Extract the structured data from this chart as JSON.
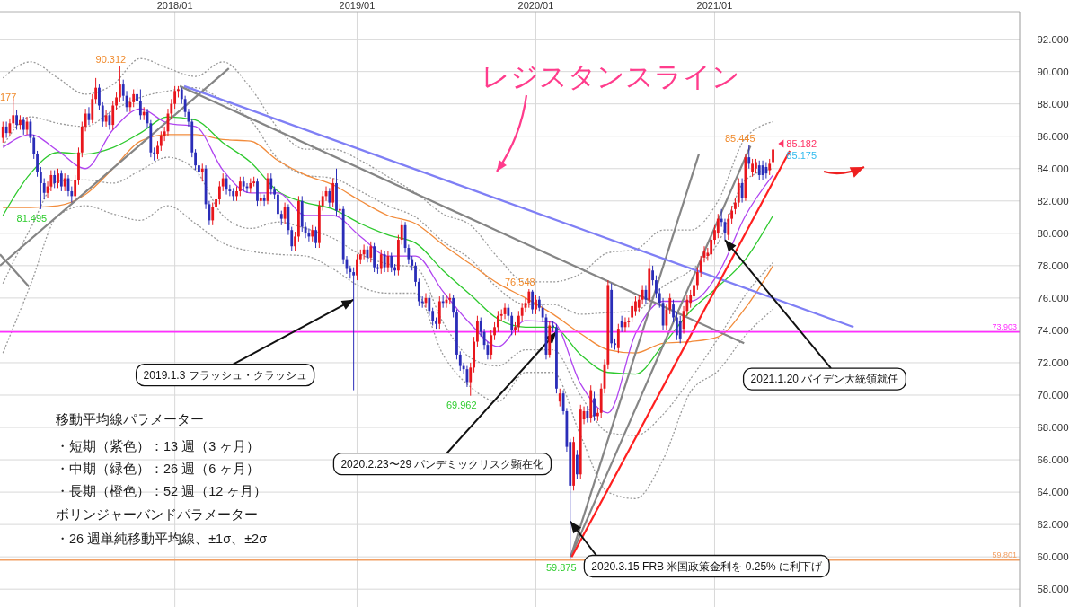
{
  "chart_data": {
    "type": "candlestick",
    "xlim": [
      "2017-01-10",
      "2022-09-17"
    ],
    "ylim": [
      56.9,
      93.7
    ],
    "xticks": [
      {
        "value": "2018-01-01",
        "label": "2018/01"
      },
      {
        "value": "2019-01-07",
        "label": "2019/01"
      },
      {
        "value": "2020-01-06",
        "label": "2020/01"
      },
      {
        "value": "2021-01-04",
        "label": "2021/01"
      }
    ],
    "yticks": [
      {
        "value": 58,
        "label": "58.000"
      },
      {
        "value": 60,
        "label": "60.000"
      },
      {
        "value": 62,
        "label": "62.000"
      },
      {
        "value": 64,
        "label": "64.000"
      },
      {
        "value": 66,
        "label": "66.000"
      },
      {
        "value": 68,
        "label": "68.000"
      },
      {
        "value": 70,
        "label": "70.000"
      },
      {
        "value": 72,
        "label": "72.000"
      },
      {
        "value": 74,
        "label": "74.000"
      },
      {
        "value": 76,
        "label": "76.000"
      },
      {
        "value": 78,
        "label": "78.000"
      },
      {
        "value": 80,
        "label": "80.000"
      },
      {
        "value": 82,
        "label": "82.000"
      },
      {
        "value": 84,
        "label": "84.000"
      },
      {
        "value": 86,
        "label": "86.000"
      },
      {
        "value": 88,
        "label": "88.000"
      },
      {
        "value": 90,
        "label": "90.000"
      },
      {
        "value": 92,
        "label": "92.000"
      }
    ],
    "grid": true,
    "colors": [
      "#e8161c",
      "#2a2db8",
      "#e8161c",
      "#e8161c",
      "#2a2db8",
      "#e8161c",
      "#2a2db8",
      "#e8161c",
      "#2a2db8",
      "#2a2db8",
      "#2a2db8",
      "#2a2db8",
      "#2a2db8",
      "#e8161c",
      "#e8161c",
      "#2a2db8",
      "#e8161c",
      "#2a2db8",
      "#e8161c",
      "#2a2db8",
      "#2a2db8",
      "#e8161c",
      "#e8161c",
      "#e8161c",
      "#e8161c",
      "#2a2db8",
      "#e8161c",
      "#e8161c",
      "#2a2db8",
      "#2a2db8",
      "#e8161c",
      "#2a2db8",
      "#e8161c",
      "#e8161c",
      "#e8161c",
      "#2a2db8",
      "#2a2db8",
      "#e8161c",
      "#e8161c",
      "#2a2db8",
      "#2a2db8",
      "#e8161c",
      "#2a2db8",
      "#2a2db8",
      "#2a2db8",
      "#e8161c",
      "#e8161c",
      "#e8161c",
      "#e8161c",
      "#e8161c",
      "#e8161c",
      "#e8161c",
      "#2a2db8",
      "#2a2db8",
      "#2a2db8",
      "#2a2db8",
      "#2a2db8",
      "#2a2db8",
      "#e8161c",
      "#2a2db8",
      "#2a2db8",
      "#e8161c",
      "#e8161c",
      "#e8161c",
      "#e8161c",
      "#2a2db8",
      "#2a2db8",
      "#2a2db8",
      "#e8161c",
      "#e8161c",
      "#2a2db8",
      "#2a2db8",
      "#e8161c",
      "#e8161c",
      "#2a2db8",
      "#e8161c",
      "#2a2db8",
      "#e8161c",
      "#2a2db8",
      "#2a2db8",
      "#2a2db8",
      "#2a2db8",
      "#e8161c",
      "#2a2db8",
      "#2a2db8",
      "#e8161c",
      "#e8161c",
      "#2a2db8",
      "#2a2db8",
      "#2a2db8",
      "#e8161c",
      "#2a2db8",
      "#e8161c",
      "#e8161c",
      "#e8161c",
      "#2a2db8",
      "#e8161c",
      "#2a2db8",
      "#e8161c",
      "#2a2db8",
      "#2a2db8",
      "#2a2db8",
      "#2a2db8",
      "#e8161c",
      "#e8161c",
      "#e8161c",
      "#2a2db8",
      "#e8161c",
      "#2a2db8",
      "#2a2db8",
      "#e8161c",
      "#2a2db8",
      "#e8161c",
      "#2a2db8",
      "#2a2db8",
      "#e8161c",
      "#e8161c",
      "#2a2db8",
      "#2a2db8",
      "#2a2db8",
      "#2a2db8",
      "#2a2db8",
      "#2a2db8",
      "#e8161c",
      "#2a2db8",
      "#2a2db8",
      "#2a2db8",
      "#e8161c",
      "#2a2db8",
      "#e8161c",
      "#e8161c",
      "#2a2db8",
      "#2a2db8",
      "#2a2db8",
      "#2a2db8",
      "#2a2db8",
      "#e8161c",
      "#e8161c",
      "#e8161c",
      "#2a2db8",
      "#2a2db8",
      "#2a2db8",
      "#e8161c",
      "#e8161c",
      "#e8161c",
      "#e8161c",
      "#e8161c",
      "#2a2db8",
      "#2a2db8",
      "#e8161c",
      "#e8161c",
      "#e8161c",
      "#e8161c",
      "#e8161c",
      "#2a2db8",
      "#e8161c",
      "#2a2db8",
      "#2a2db8",
      "#2a2db8",
      "#e8161c",
      "#2a2db8",
      "#2a2db8",
      "#e8161c",
      "#2a2db8",
      "#2a2db8",
      "#2a2db8",
      "#e8161c",
      "#2a2db8",
      "#e8161c",
      "#e8161c",
      "#2a2db8",
      "#e8161c",
      "#2a2db8",
      "#e8161c",
      "#e8161c",
      "#e8161c",
      "#e8161c",
      "#2a2db8",
      "#2a2db8",
      "#e8161c",
      "#2a2db8",
      "#e8161c",
      "#e8161c",
      "#e8161c",
      "#e8161c",
      "#e8161c",
      "#e8161c",
      "#2a2db8",
      "#e8161c",
      "#2a2db8",
      "#2a2db8",
      "#2a2db8",
      "#2a2db8",
      "#e8161c",
      "#e8161c",
      "#2a2db8",
      "#2a2db8",
      "#2a2db8",
      "#e8161c",
      "#e8161c",
      "#e8161c",
      "#e8161c",
      "#e8161c",
      "#e8161c",
      "#e8161c",
      "#e8161c",
      "#e8161c",
      "#e8161c",
      "#e8161c",
      "#2a2db8",
      "#2a2db8",
      "#e8161c",
      "#e8161c",
      "#e8161c",
      "#e8161c",
      "#2a2db8",
      "#e8161c",
      "#2a2db8",
      "#e8161c",
      "#e8161c",
      "#2a2db8",
      "#2a2db8",
      "#2a2db8",
      "#e8161c",
      "#e8161c"
    ],
    "x": [
      "2017-01-16",
      "2017-01-23",
      "2017-01-30",
      "2017-02-06",
      "2017-02-13",
      "2017-02-20",
      "2017-02-27",
      "2017-03-06",
      "2017-03-13",
      "2017-03-20",
      "2017-03-27",
      "2017-04-03",
      "2017-04-10",
      "2017-04-17",
      "2017-04-24",
      "2017-05-01",
      "2017-05-08",
      "2017-05-15",
      "2017-05-22",
      "2017-05-29",
      "2017-06-05",
      "2017-06-12",
      "2017-06-19",
      "2017-06-26",
      "2017-07-03",
      "2017-07-10",
      "2017-07-17",
      "2017-07-24",
      "2017-07-31",
      "2017-08-07",
      "2017-08-14",
      "2017-08-21",
      "2017-08-28",
      "2017-09-04",
      "2017-09-11",
      "2017-09-18",
      "2017-09-25",
      "2017-10-02",
      "2017-10-09",
      "2017-10-16",
      "2017-10-23",
      "2017-10-30",
      "2017-11-06",
      "2017-11-13",
      "2017-11-20",
      "2017-11-27",
      "2017-12-04",
      "2017-12-11",
      "2017-12-18",
      "2017-12-25",
      "2018-01-01",
      "2018-01-08",
      "2018-01-15",
      "2018-01-22",
      "2018-01-29",
      "2018-02-05",
      "2018-02-12",
      "2018-02-19",
      "2018-02-26",
      "2018-03-05",
      "2018-03-12",
      "2018-03-19",
      "2018-03-26",
      "2018-04-02",
      "2018-04-09",
      "2018-04-16",
      "2018-04-23",
      "2018-04-30",
      "2018-05-07",
      "2018-05-14",
      "2018-05-21",
      "2018-05-28",
      "2018-06-04",
      "2018-06-11",
      "2018-06-18",
      "2018-06-25",
      "2018-07-02",
      "2018-07-09",
      "2018-07-16",
      "2018-07-23",
      "2018-07-30",
      "2018-08-06",
      "2018-08-13",
      "2018-08-20",
      "2018-08-27",
      "2018-09-03",
      "2018-09-10",
      "2018-09-17",
      "2018-09-24",
      "2018-10-01",
      "2018-10-08",
      "2018-10-15",
      "2018-10-22",
      "2018-10-29",
      "2018-11-05",
      "2018-11-12",
      "2018-11-19",
      "2018-11-26",
      "2018-12-03",
      "2018-12-10",
      "2018-12-17",
      "2018-12-24",
      "2018-12-31",
      "2019-01-07",
      "2019-01-14",
      "2019-01-21",
      "2019-01-28",
      "2019-02-04",
      "2019-02-11",
      "2019-02-18",
      "2019-02-25",
      "2019-03-04",
      "2019-03-11",
      "2019-03-18",
      "2019-03-25",
      "2019-04-01",
      "2019-04-08",
      "2019-04-15",
      "2019-04-22",
      "2019-04-29",
      "2019-05-06",
      "2019-05-13",
      "2019-05-20",
      "2019-05-27",
      "2019-06-03",
      "2019-06-10",
      "2019-06-17",
      "2019-06-24",
      "2019-07-01",
      "2019-07-08",
      "2019-07-15",
      "2019-07-22",
      "2019-07-29",
      "2019-08-05",
      "2019-08-12",
      "2019-08-19",
      "2019-08-26",
      "2019-09-02",
      "2019-09-09",
      "2019-09-16",
      "2019-09-23",
      "2019-09-30",
      "2019-10-07",
      "2019-10-14",
      "2019-10-21",
      "2019-10-28",
      "2019-11-04",
      "2019-11-11",
      "2019-11-18",
      "2019-11-25",
      "2019-12-02",
      "2019-12-09",
      "2019-12-16",
      "2019-12-23",
      "2019-12-30",
      "2020-01-06",
      "2020-01-13",
      "2020-01-20",
      "2020-01-27",
      "2020-02-03",
      "2020-02-10",
      "2020-02-17",
      "2020-02-24",
      "2020-03-02",
      "2020-03-09",
      "2020-03-16",
      "2020-03-23",
      "2020-03-30",
      "2020-04-06",
      "2020-04-13",
      "2020-04-20",
      "2020-04-27",
      "2020-05-04",
      "2020-05-11",
      "2020-05-18",
      "2020-05-25",
      "2020-06-01",
      "2020-06-08",
      "2020-06-15",
      "2020-06-22",
      "2020-06-29",
      "2020-07-06",
      "2020-07-13",
      "2020-07-20",
      "2020-07-27",
      "2020-08-03",
      "2020-08-10",
      "2020-08-17",
      "2020-08-24",
      "2020-08-31",
      "2020-09-07",
      "2020-09-14",
      "2020-09-21",
      "2020-09-28",
      "2020-10-05",
      "2020-10-12",
      "2020-10-19",
      "2020-10-26",
      "2020-11-02",
      "2020-11-09",
      "2020-11-16",
      "2020-11-23",
      "2020-11-30",
      "2020-12-07",
      "2020-12-14",
      "2020-12-21",
      "2020-12-28",
      "2021-01-04",
      "2021-01-11",
      "2021-01-18",
      "2021-01-25",
      "2021-02-01",
      "2021-02-08",
      "2021-02-15",
      "2021-02-22",
      "2021-03-01",
      "2021-03-08",
      "2021-03-15",
      "2021-03-22",
      "2021-03-29",
      "2021-04-05",
      "2021-04-12",
      "2021-04-19",
      "2021-04-26",
      "2021-05-03"
    ],
    "ohlc": [
      [
        85.9,
        86.9,
        85.6,
        86.6
      ],
      [
        86.6,
        86.9,
        85.9,
        86.2
      ],
      [
        86.2,
        87.1,
        86.0,
        86.8
      ],
      [
        86.8,
        88.3,
        86.5,
        87.3
      ],
      [
        87.3,
        87.6,
        86.4,
        86.7
      ],
      [
        86.7,
        87.3,
        86.4,
        87.0
      ],
      [
        87.0,
        87.2,
        86.1,
        86.4
      ],
      [
        86.4,
        87.2,
        86.1,
        86.9
      ],
      [
        86.9,
        87.1,
        85.6,
        85.9
      ],
      [
        85.9,
        86.1,
        84.6,
        84.9
      ],
      [
        84.9,
        85.1,
        83.5,
        83.8
      ],
      [
        83.8,
        84.1,
        81.495,
        83.1
      ],
      [
        83.1,
        83.4,
        82.1,
        82.5
      ],
      [
        82.5,
        83.2,
        82.2,
        82.9
      ],
      [
        82.9,
        83.9,
        82.6,
        83.6
      ],
      [
        83.6,
        83.9,
        82.8,
        83.1
      ],
      [
        83.1,
        84.0,
        82.8,
        83.7
      ],
      [
        83.7,
        83.9,
        82.6,
        82.9
      ],
      [
        82.9,
        83.7,
        82.6,
        83.4
      ],
      [
        83.4,
        83.6,
        82.3,
        82.6
      ],
      [
        82.6,
        82.9,
        81.9,
        82.3
      ],
      [
        82.3,
        83.6,
        82.0,
        83.3
      ],
      [
        83.3,
        85.3,
        83.0,
        85.0
      ],
      [
        85.0,
        86.9,
        84.7,
        86.6
      ],
      [
        86.6,
        87.7,
        86.3,
        87.4
      ],
      [
        87.4,
        87.8,
        86.7,
        87.0
      ],
      [
        87.0,
        88.6,
        86.8,
        88.3
      ],
      [
        88.3,
        89.6,
        88.0,
        89.0
      ],
      [
        89.0,
        89.2,
        87.6,
        87.9
      ],
      [
        87.9,
        88.1,
        86.6,
        86.9
      ],
      [
        86.9,
        87.6,
        86.6,
        87.3
      ],
      [
        87.3,
        87.5,
        86.4,
        86.7
      ],
      [
        86.7,
        88.2,
        86.4,
        87.9
      ],
      [
        87.9,
        88.7,
        87.6,
        88.4
      ],
      [
        88.4,
        90.312,
        88.1,
        89.2
      ],
      [
        89.2,
        89.5,
        88.2,
        88.5
      ],
      [
        88.5,
        88.8,
        87.5,
        87.8
      ],
      [
        87.8,
        88.4,
        87.5,
        88.1
      ],
      [
        88.1,
        88.9,
        87.8,
        88.6
      ],
      [
        88.6,
        89.0,
        87.9,
        88.2
      ],
      [
        88.2,
        88.9,
        87.0,
        87.3
      ],
      [
        87.3,
        87.8,
        87.0,
        87.5
      ],
      [
        87.5,
        87.7,
        86.5,
        86.8
      ],
      [
        86.8,
        87.0,
        84.7,
        85.0
      ],
      [
        85.0,
        85.3,
        84.5,
        84.9
      ],
      [
        84.9,
        85.7,
        84.6,
        85.4
      ],
      [
        85.4,
        86.3,
        85.1,
        86.0
      ],
      [
        86.0,
        86.6,
        85.7,
        86.3
      ],
      [
        86.3,
        87.7,
        86.0,
        87.4
      ],
      [
        87.4,
        88.3,
        87.1,
        88.0
      ],
      [
        88.0,
        89.1,
        87.7,
        88.8
      ],
      [
        88.8,
        89.1,
        88.4,
        88.9
      ],
      [
        88.9,
        89.0,
        88.0,
        88.3
      ],
      [
        88.3,
        88.5,
        87.2,
        87.5
      ],
      [
        87.5,
        87.7,
        86.6,
        86.9
      ],
      [
        86.9,
        87.1,
        84.7,
        85.0
      ],
      [
        85.0,
        85.2,
        83.9,
        84.2
      ],
      [
        84.2,
        84.4,
        83.5,
        83.8
      ],
      [
        83.8,
        84.3,
        83.2,
        84.0
      ],
      [
        84.0,
        84.2,
        81.5,
        81.8
      ],
      [
        81.8,
        82.0,
        80.5,
        80.8
      ],
      [
        80.8,
        81.9,
        80.5,
        81.6
      ],
      [
        81.6,
        82.4,
        81.3,
        82.1
      ],
      [
        82.1,
        83.2,
        81.8,
        82.9
      ],
      [
        82.9,
        83.7,
        82.6,
        83.4
      ],
      [
        83.4,
        83.6,
        82.4,
        82.7
      ],
      [
        82.7,
        83.0,
        82.3,
        82.6
      ],
      [
        82.6,
        82.8,
        82.0,
        82.3
      ],
      [
        82.3,
        82.9,
        82.0,
        82.6
      ],
      [
        82.6,
        83.5,
        82.3,
        83.2
      ],
      [
        83.2,
        83.5,
        82.6,
        82.9
      ],
      [
        82.9,
        83.1,
        82.5,
        82.8
      ],
      [
        82.8,
        83.4,
        82.5,
        83.1
      ],
      [
        83.1,
        83.5,
        82.9,
        83.2
      ],
      [
        83.2,
        83.4,
        81.7,
        82.0
      ],
      [
        82.0,
        82.5,
        81.7,
        82.2
      ],
      [
        82.2,
        82.4,
        81.7,
        82.0
      ],
      [
        82.0,
        83.7,
        81.8,
        83.4
      ],
      [
        83.4,
        83.7,
        82.4,
        82.7
      ],
      [
        82.7,
        82.9,
        82.1,
        82.4
      ],
      [
        82.4,
        82.6,
        80.9,
        81.2
      ],
      [
        81.2,
        81.4,
        80.5,
        80.9
      ],
      [
        80.9,
        81.9,
        80.6,
        81.6
      ],
      [
        81.6,
        81.8,
        79.9,
        80.2
      ],
      [
        80.2,
        80.4,
        78.9,
        79.2
      ],
      [
        79.2,
        80.1,
        78.9,
        79.8
      ],
      [
        79.8,
        82.3,
        79.5,
        82.0
      ],
      [
        82.0,
        82.3,
        80.1,
        80.4
      ],
      [
        80.4,
        80.7,
        79.7,
        80.0
      ],
      [
        80.0,
        80.3,
        79.5,
        79.8
      ],
      [
        79.8,
        80.5,
        79.5,
        80.2
      ],
      [
        80.2,
        80.4,
        79.1,
        79.4
      ],
      [
        79.4,
        82.0,
        79.1,
        81.7
      ],
      [
        81.7,
        82.6,
        81.4,
        82.3
      ],
      [
        82.3,
        82.9,
        82.0,
        82.6
      ],
      [
        82.6,
        82.8,
        81.6,
        81.9
      ],
      [
        81.9,
        83.4,
        81.6,
        83.1
      ],
      [
        83.1,
        84.0,
        81.1,
        81.4
      ],
      [
        81.4,
        81.8,
        81.1,
        81.5
      ],
      [
        81.5,
        81.7,
        78.1,
        78.4
      ],
      [
        78.4,
        78.6,
        77.5,
        77.8
      ],
      [
        77.8,
        78.0,
        77.2,
        77.6
      ],
      [
        77.6,
        77.9,
        70.3,
        77.4
      ],
      [
        77.4,
        78.7,
        77.1,
        78.4
      ],
      [
        78.4,
        79.0,
        78.1,
        78.7
      ],
      [
        78.7,
        79.3,
        78.4,
        79.0
      ],
      [
        79.0,
        79.2,
        78.2,
        78.5
      ],
      [
        78.5,
        79.5,
        78.2,
        79.2
      ],
      [
        79.2,
        79.4,
        77.6,
        77.9
      ],
      [
        77.9,
        78.1,
        77.5,
        77.8
      ],
      [
        77.8,
        79.0,
        77.5,
        78.7
      ],
      [
        78.7,
        78.9,
        77.6,
        77.9
      ],
      [
        77.9,
        78.9,
        77.6,
        78.6
      ],
      [
        78.6,
        78.8,
        77.6,
        77.9
      ],
      [
        77.9,
        78.1,
        77.4,
        77.7
      ],
      [
        77.7,
        79.9,
        77.4,
        79.6
      ],
      [
        79.6,
        80.8,
        79.3,
        80.5
      ],
      [
        80.5,
        80.7,
        78.8,
        79.1
      ],
      [
        79.1,
        79.3,
        78.1,
        78.4
      ],
      [
        78.4,
        78.6,
        77.7,
        78.0
      ],
      [
        78.0,
        78.2,
        76.7,
        77.0
      ],
      [
        77.0,
        77.2,
        75.5,
        75.8
      ],
      [
        75.8,
        76.1,
        75.4,
        75.7
      ],
      [
        75.7,
        76.3,
        75.4,
        76.0
      ],
      [
        76.0,
        76.2,
        74.9,
        75.2
      ],
      [
        75.2,
        75.4,
        74.3,
        74.6
      ],
      [
        74.6,
        74.8,
        74.1,
        74.4
      ],
      [
        74.4,
        76.1,
        74.1,
        75.8
      ],
      [
        75.8,
        76.2,
        75.4,
        75.7
      ],
      [
        75.7,
        76.2,
        75.4,
        75.9
      ],
      [
        75.9,
        76.3,
        75.6,
        76.0
      ],
      [
        76.0,
        76.2,
        74.8,
        75.1
      ],
      [
        75.1,
        75.3,
        72.2,
        72.5
      ],
      [
        72.5,
        72.7,
        71.5,
        71.8
      ],
      [
        71.8,
        72.0,
        71.3,
        71.6
      ],
      [
        71.6,
        71.8,
        70.5,
        70.8
      ],
      [
        70.8,
        72.0,
        69.962,
        71.7
      ],
      [
        71.7,
        73.6,
        71.4,
        73.3
      ],
      [
        73.3,
        74.9,
        73.0,
        74.6
      ],
      [
        74.6,
        74.8,
        73.6,
        73.9
      ],
      [
        73.9,
        74.1,
        72.8,
        73.1
      ],
      [
        73.1,
        73.3,
        72.2,
        72.5
      ],
      [
        72.5,
        74.0,
        72.2,
        73.7
      ],
      [
        73.7,
        74.5,
        73.4,
        74.2
      ],
      [
        74.2,
        75.2,
        73.9,
        74.9
      ],
      [
        74.9,
        75.3,
        74.6,
        75.0
      ],
      [
        75.0,
        75.7,
        74.7,
        75.4
      ],
      [
        75.4,
        75.6,
        74.6,
        74.9
      ],
      [
        74.9,
        75.1,
        73.7,
        74.0
      ],
      [
        74.0,
        74.5,
        73.7,
        74.2
      ],
      [
        74.2,
        75.2,
        73.9,
        74.9
      ],
      [
        74.9,
        75.7,
        74.6,
        75.4
      ],
      [
        75.4,
        76.0,
        75.1,
        75.7
      ],
      [
        75.7,
        76.548,
        75.4,
        76.4
      ],
      [
        76.4,
        76.5,
        75.0,
        75.3
      ],
      [
        75.3,
        76.2,
        75.0,
        75.9
      ],
      [
        75.9,
        76.1,
        75.2,
        75.4
      ],
      [
        75.4,
        75.6,
        74.5,
        74.8
      ],
      [
        74.8,
        75.0,
        72.2,
        72.5
      ],
      [
        72.5,
        74.6,
        72.3,
        74.3
      ],
      [
        74.3,
        74.6,
        73.9,
        74.2
      ],
      [
        74.2,
        74.4,
        70.1,
        70.4
      ],
      [
        69.6,
        70.4,
        69.3,
        70.1
      ],
      [
        70.1,
        70.3,
        68.8,
        69.0
      ],
      [
        69.0,
        69.2,
        66.5,
        66.8
      ],
      [
        67.1,
        67.3,
        59.875,
        64.4
      ],
      [
        64.4,
        67.4,
        64.1,
        67.1
      ],
      [
        66.3,
        66.6,
        64.8,
        65.1
      ],
      [
        65.1,
        69.4,
        64.8,
        69.1
      ],
      [
        68.5,
        69.3,
        68.2,
        69.0
      ],
      [
        69.0,
        69.3,
        68.3,
        68.6
      ],
      [
        68.6,
        70.6,
        68.3,
        70.3
      ],
      [
        69.8,
        70.2,
        68.4,
        68.7
      ],
      [
        68.7,
        69.2,
        68.4,
        68.9
      ],
      [
        68.9,
        70.7,
        68.6,
        70.4
      ],
      [
        70.4,
        72.2,
        70.1,
        71.9
      ],
      [
        71.9,
        77.1,
        71.6,
        76.8
      ],
      [
        76.5,
        76.9,
        72.9,
        73.2
      ],
      [
        73.2,
        73.5,
        72.8,
        73.1
      ],
      [
        72.9,
        74.4,
        72.6,
        74.1
      ],
      [
        74.6,
        74.9,
        73.9,
        74.2
      ],
      [
        74.2,
        74.8,
        73.9,
        74.5
      ],
      [
        74.5,
        74.8,
        74.2,
        74.6
      ],
      [
        74.8,
        75.8,
        74.5,
        75.5
      ],
      [
        75.2,
        76.1,
        74.9,
        75.8
      ],
      [
        75.4,
        76.2,
        75.1,
        75.9
      ],
      [
        75.9,
        76.8,
        75.6,
        76.5
      ],
      [
        76.5,
        76.8,
        75.6,
        75.9
      ],
      [
        75.9,
        78.4,
        75.6,
        77.8
      ],
      [
        77.7,
        78.0,
        76.8,
        77.1
      ],
      [
        77.1,
        77.4,
        76.0,
        76.3
      ],
      [
        76.3,
        76.6,
        75.4,
        75.7
      ],
      [
        75.7,
        76.0,
        74.0,
        74.3
      ],
      [
        74.3,
        75.6,
        74.0,
        75.3
      ],
      [
        75.3,
        76.3,
        75.0,
        76.0
      ],
      [
        75.6,
        75.9,
        74.5,
        74.8
      ],
      [
        74.8,
        75.1,
        73.4,
        73.7
      ],
      [
        74.6,
        74.9,
        73.2,
        73.5
      ],
      [
        74.1,
        75.5,
        73.8,
        75.2
      ],
      [
        75.2,
        76.2,
        74.9,
        75.9
      ],
      [
        75.7,
        76.5,
        75.4,
        76.2
      ],
      [
        76.1,
        77.1,
        75.8,
        76.8
      ],
      [
        76.8,
        77.9,
        76.5,
        77.6
      ],
      [
        77.6,
        78.6,
        77.3,
        78.3
      ],
      [
        78.5,
        79.2,
        78.2,
        78.9
      ],
      [
        78.6,
        79.1,
        78.3,
        78.8
      ],
      [
        78.7,
        79.9,
        78.4,
        79.6
      ],
      [
        79.6,
        80.5,
        79.3,
        80.2
      ],
      [
        80.0,
        81.2,
        79.7,
        80.9
      ],
      [
        80.9,
        81.5,
        80.4,
        80.7
      ],
      [
        80.7,
        80.9,
        79.6,
        80.0
      ],
      [
        79.9,
        81.2,
        79.6,
        80.9
      ],
      [
        80.9,
        81.7,
        80.6,
        81.4
      ],
      [
        81.5,
        82.2,
        81.2,
        81.9
      ],
      [
        81.9,
        83.4,
        81.6,
        83.1
      ],
      [
        83.1,
        83.4,
        81.9,
        82.2
      ],
      [
        82.2,
        84.9,
        82.0,
        84.7
      ],
      [
        84.7,
        85.445,
        84.0,
        84.3
      ],
      [
        83.8,
        84.6,
        83.5,
        84.3
      ],
      [
        84.0,
        84.6,
        83.7,
        84.4
      ],
      [
        84.2,
        84.5,
        83.3,
        83.6
      ],
      [
        84.2,
        84.5,
        83.3,
        83.6
      ],
      [
        84.1,
        84.4,
        83.4,
        83.7
      ],
      [
        83.9,
        84.6,
        83.6,
        84.3
      ],
      [
        84.4,
        85.3,
        84.1,
        85.182
      ]
    ],
    "series": [
      {
        "type": "line",
        "line_style": "dotted",
        "color": "#9a9a9a",
        "x": [
          "2017-01-16",
          "2017-03-13",
          "2017-05-08",
          "2017-07-03",
          "2017-08-28",
          "2017-10-23",
          "2017-12-18",
          "2018-02-12",
          "2018-04-09",
          "2018-06-04",
          "2018-07-30",
          "2018-09-24",
          "2018-11-19",
          "2019-01-14",
          "2019-03-11",
          "2019-05-06",
          "2019-07-01",
          "2019-08-26",
          "2019-10-21",
          "2019-12-16",
          "2020-02-10",
          "2020-04-06",
          "2020-06-01",
          "2020-07-27",
          "2020-09-21",
          "2020-11-16",
          "2021-01-11",
          "2021-03-08",
          "2021-05-03"
        ],
        "values": [
          89.6,
          90.6,
          89.6,
          88.6,
          89.2,
          90.8,
          90.2,
          89.7,
          90.6,
          89.0,
          86.5,
          85.2,
          85.2,
          84.5,
          83.5,
          82.5,
          81.2,
          80.5,
          78.5,
          77.0,
          77.0,
          77.5,
          78.8,
          79.0,
          80.2,
          80.2,
          82.0,
          85.9,
          86.9
        ]
      },
      {
        "type": "line",
        "line_style": "dotted",
        "color": "#9a9a9a",
        "x": [
          "2017-01-16",
          "2017-03-13",
          "2017-05-08",
          "2017-07-03",
          "2017-08-28",
          "2017-10-23",
          "2017-12-18",
          "2018-02-12",
          "2018-04-09",
          "2018-06-04",
          "2018-07-30",
          "2018-09-24",
          "2018-11-19",
          "2019-01-14",
          "2019-03-11",
          "2019-05-06",
          "2019-07-01",
          "2019-08-26",
          "2019-10-21",
          "2019-12-16",
          "2020-02-10",
          "2020-04-06",
          "2020-06-01",
          "2020-07-27",
          "2020-09-21",
          "2020-11-16",
          "2021-01-11",
          "2021-03-08",
          "2021-05-03"
        ],
        "values": [
          85.4,
          87.2,
          86.8,
          86.6,
          87.6,
          88.4,
          88.8,
          89.0,
          88.2,
          87.0,
          84.6,
          83.6,
          83.4,
          82.6,
          81.7,
          81.0,
          79.5,
          78.4,
          76.6,
          75.6,
          75.6,
          75.0,
          75.1,
          75.2,
          76.7,
          77.7,
          79.4,
          83.3,
          84.0
        ]
      },
      {
        "type": "line",
        "line_style": "dotted",
        "color": "#9a9a9a",
        "x": [
          "2017-01-16",
          "2017-03-13",
          "2017-05-08",
          "2017-07-03",
          "2017-08-28",
          "2017-10-23",
          "2017-12-18",
          "2018-02-12",
          "2018-04-09",
          "2018-06-04",
          "2018-07-30",
          "2018-09-24",
          "2018-11-19",
          "2019-01-14",
          "2019-03-11",
          "2019-05-06",
          "2019-07-01",
          "2019-08-26",
          "2019-10-21",
          "2019-12-16",
          "2020-02-10",
          "2020-04-06",
          "2020-06-01",
          "2020-07-27",
          "2020-09-21",
          "2020-11-16",
          "2021-01-11",
          "2021-03-08",
          "2021-05-03"
        ],
        "values": [
          76.9,
          80.3,
          83.2,
          83.3,
          83.1,
          83.9,
          84.7,
          83.9,
          81.1,
          80.3,
          80.7,
          80.3,
          79.7,
          78.7,
          78.1,
          77.9,
          74.5,
          72.3,
          71.8,
          72.8,
          72.8,
          70.0,
          67.7,
          67.5,
          68.8,
          71.0,
          73.5,
          76.2,
          78.2
        ]
      },
      {
        "type": "line",
        "line_style": "dotted",
        "color": "#9a9a9a",
        "x": [
          "2017-01-16",
          "2017-03-13",
          "2017-05-08",
          "2017-07-03",
          "2017-08-28",
          "2017-10-23",
          "2017-12-18",
          "2018-02-12",
          "2018-04-09",
          "2018-06-04",
          "2018-07-30",
          "2018-09-24",
          "2018-11-19",
          "2019-01-14",
          "2019-03-11",
          "2019-05-06",
          "2019-07-01",
          "2019-08-26",
          "2019-10-21",
          "2019-12-16",
          "2020-02-10",
          "2020-04-06",
          "2020-06-01",
          "2020-07-27",
          "2020-09-21",
          "2020-11-16",
          "2021-01-11",
          "2021-03-08",
          "2021-05-03"
        ],
        "values": [
          72.6,
          76.8,
          81.1,
          81.7,
          81.2,
          80.8,
          81.7,
          80.6,
          79.4,
          78.9,
          78.7,
          78.6,
          77.8,
          76.7,
          76.3,
          76.3,
          72.5,
          70.5,
          69.6,
          71.4,
          71.4,
          67.5,
          64.0,
          63.6,
          66.0,
          70.2,
          71.5,
          73.7,
          75.3
        ]
      },
      {
        "type": "line",
        "color": "#f28c3c",
        "x": [
          "2017-01-16",
          "2017-03-13",
          "2017-05-08",
          "2017-07-03",
          "2017-08-28",
          "2017-10-23",
          "2017-12-18",
          "2018-02-12",
          "2018-04-09",
          "2018-06-04",
          "2018-07-30",
          "2018-09-24",
          "2018-11-19",
          "2019-01-14",
          "2019-03-11",
          "2019-05-06",
          "2019-07-01",
          "2019-08-26",
          "2019-10-21",
          "2019-12-16",
          "2020-02-10",
          "2020-04-06",
          "2020-06-01",
          "2020-07-27",
          "2020-09-21",
          "2020-11-16",
          "2021-01-11",
          "2021-03-08",
          "2021-05-03"
        ],
        "values": [
          81.6,
          81.6,
          81.7,
          82.4,
          84.0,
          85.7,
          86.1,
          86.1,
          85.8,
          85.7,
          84.5,
          83.6,
          83.0,
          82.0,
          81.1,
          80.6,
          79.3,
          78.1,
          76.9,
          76.0,
          75.0,
          73.8,
          72.8,
          72.6,
          73.2,
          73.3,
          73.6,
          75.4,
          78.0
        ]
      },
      {
        "type": "line",
        "color": "#2ec92e",
        "x": [
          "2017-01-16",
          "2017-03-13",
          "2017-05-08",
          "2017-07-03",
          "2017-08-28",
          "2017-10-23",
          "2017-12-18",
          "2018-02-12",
          "2018-04-09",
          "2018-06-04",
          "2018-07-30",
          "2018-09-24",
          "2018-11-19",
          "2019-01-14",
          "2019-03-11",
          "2019-05-06",
          "2019-07-01",
          "2019-08-26",
          "2019-10-21",
          "2019-12-16",
          "2020-02-10",
          "2020-04-06",
          "2020-06-01",
          "2020-07-27",
          "2020-09-21",
          "2020-11-16",
          "2021-01-11",
          "2021-03-08",
          "2021-05-03"
        ],
        "values": [
          81.1,
          83.7,
          85.0,
          84.9,
          85.3,
          86.2,
          87.2,
          87.0,
          85.6,
          84.4,
          82.6,
          81.9,
          81.5,
          80.6,
          79.9,
          79.4,
          77.7,
          76.2,
          74.7,
          74.2,
          74.2,
          72.5,
          71.4,
          71.3,
          73.1,
          75.2,
          76.7,
          78.4,
          81.1
        ]
      },
      {
        "type": "line",
        "color": "#b045f0",
        "x": [
          "2017-01-16",
          "2017-03-13",
          "2017-05-08",
          "2017-07-03",
          "2017-08-28",
          "2017-10-23",
          "2017-12-18",
          "2018-02-12",
          "2018-04-09",
          "2018-06-04",
          "2018-07-30",
          "2018-09-24",
          "2018-11-19",
          "2019-01-14",
          "2019-03-11",
          "2019-05-06",
          "2019-07-01",
          "2019-08-26",
          "2019-10-21",
          "2019-12-16",
          "2020-02-10",
          "2020-04-06",
          "2020-06-01",
          "2020-07-27",
          "2020-09-21",
          "2020-11-16",
          "2021-01-11",
          "2021-03-08",
          "2021-05-03"
        ],
        "values": [
          85.3,
          86.1,
          85.1,
          84.0,
          86.4,
          87.7,
          86.8,
          86.6,
          83.9,
          82.5,
          82.5,
          81.1,
          81.1,
          79.8,
          78.6,
          78.6,
          76.4,
          74.4,
          73.0,
          74.6,
          74.5,
          70.7,
          68.9,
          73.8,
          75.8,
          75.8,
          77.5,
          81.1,
          83.6
        ]
      },
      {
        "type": "line",
        "color": "#858585",
        "x": [
          "2017-01-10",
          "2018-04-21"
        ],
        "values": [
          78.0,
          90.2
        ]
      },
      {
        "type": "line",
        "color": "#858585",
        "x": [
          "2017-01-10",
          "2017-03-10"
        ],
        "values": [
          78.7,
          76.7
        ]
      },
      {
        "type": "line",
        "color": "#858585",
        "x": [
          "2018-01-11",
          "2021-03-05"
        ],
        "values": [
          89.1,
          73.2
        ]
      },
      {
        "type": "line",
        "color": "#858585",
        "x": [
          "2020-03-17",
          "2020-12-03"
        ],
        "values": [
          60.0,
          84.9
        ]
      },
      {
        "type": "line",
        "color": "#858585",
        "x": [
          "2020-03-17",
          "2021-03-18"
        ],
        "values": [
          60.0,
          85.4
        ]
      },
      {
        "type": "line",
        "color": "#7f7ff5",
        "x": [
          "2018-01-20",
          "2021-10-14"
        ],
        "values": [
          89.1,
          74.2
        ]
      },
      {
        "type": "line",
        "color": "#ff1f1f",
        "x": [
          "2020-03-19",
          "2021-06-06"
        ],
        "values": [
          60.0,
          85.1
        ]
      }
    ],
    "ref_lines": [
      {
        "axis": "y",
        "value": 73.903,
        "label": "73.903",
        "color": "#ff30ff"
      },
      {
        "axis": "y",
        "value": 59.801,
        "label": "59.801",
        "color": "#f2a064"
      }
    ],
    "annotations": [
      "レジスタンスライン",
      "177",
      "移動平均線パラメーター",
      "・短期（紫色）：13 週（3 ヶ月）",
      "・中期（緑色）：26 週（6 ヶ月）",
      "・長期（橙色）：52 週（12 ヶ月）",
      "ボリンジャーバンドパラメーター",
      "・26 週単純移動平均線、±1σ、±2σ",
      {
        "text": "2019.1.3 フラッシュ・クラッシュ",
        "x": "2018-12-31",
        "y": 75.9
      },
      {
        "text": "2020.2.23〜29 パンデミックリスク顕在化",
        "x": "2020-02-17",
        "y": 73.9
      },
      {
        "text": "2021.1.20 バイデン大統領就任",
        "x": "2021-01-25",
        "y": 79.6
      },
      {
        "text": "2020.3.15 FRB 米国政策金利を 0.25% に利下げ",
        "x": "2020-03-16",
        "y": 62.2
      },
      {
        "text": "90.312",
        "x": "2017-09-11",
        "y": 90.312
      },
      {
        "text": "81.495",
        "x": "2017-04-03",
        "y": 81.495
      },
      {
        "text": "69.962",
        "x": "2019-08-26",
        "y": 69.962
      },
      {
        "text": "76.548",
        "x": "2019-12-23",
        "y": 76.548
      },
      {
        "text": "59.875",
        "x": "2020-03-16",
        "y": 59.875
      },
      {
        "text": "85.445",
        "x": "2021-03-15",
        "y": 85.445
      },
      {
        "text": "85.182",
        "x": "2021-05-10",
        "y": 85.182
      },
      {
        "text": "85.175",
        "x": "2021-05-10",
        "y": 85.175
      }
    ]
  }
}
